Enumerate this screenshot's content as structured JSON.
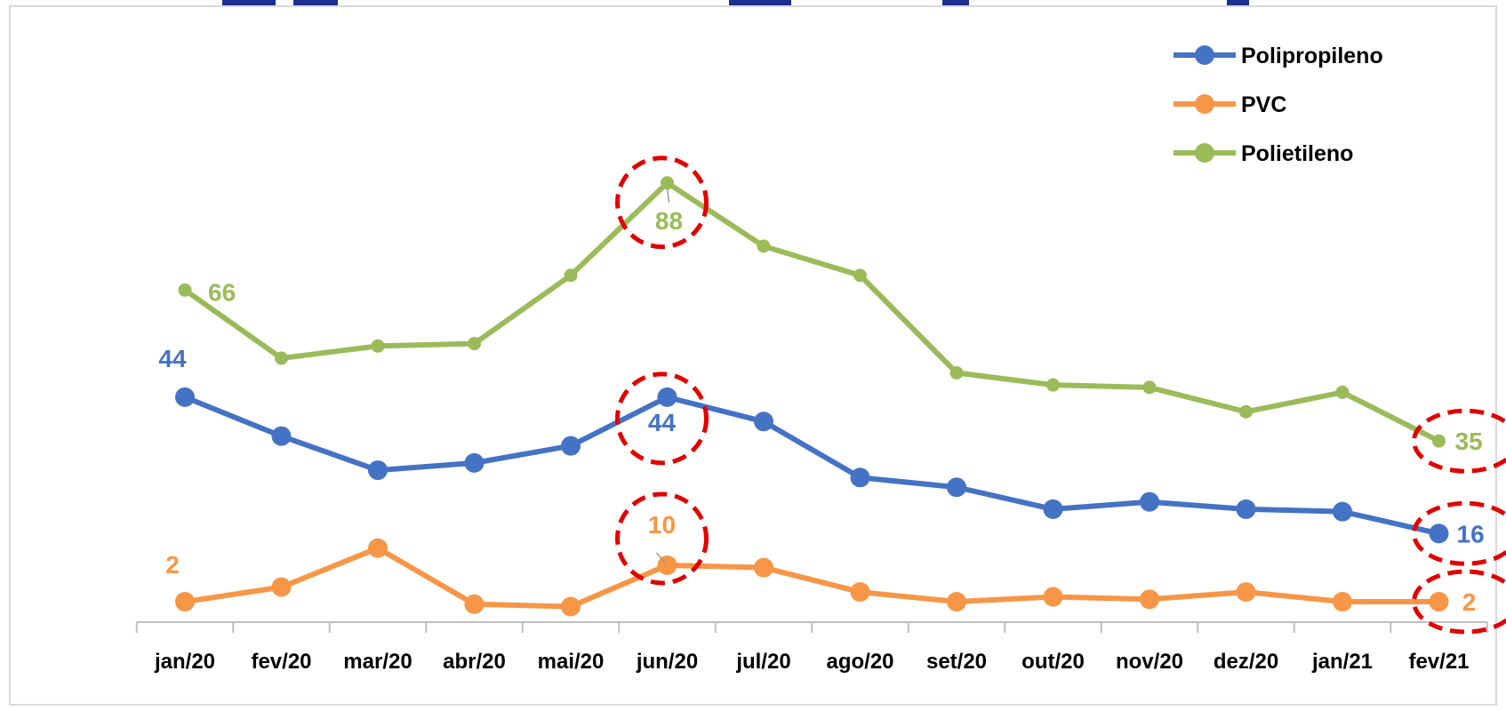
{
  "chart_data": {
    "type": "line",
    "title": "",
    "xlabel": "",
    "ylabel": "",
    "categories": [
      "jan/20",
      "fev/20",
      "mar/20",
      "abr/20",
      "mai/20",
      "jun/20",
      "jul/20",
      "ago/20",
      "set/20",
      "out/20",
      "nov/20",
      "dez/20",
      "jan/21",
      "fev/21"
    ],
    "ylim": [
      0,
      100
    ],
    "grid": false,
    "legend_position": "top-right",
    "series": [
      {
        "name": "Polipropileno",
        "color": "#4472c4",
        "values": [
          44,
          36,
          29,
          30.5,
          34,
          44,
          39,
          27.5,
          25.5,
          21,
          22.5,
          21,
          20.5,
          16
        ]
      },
      {
        "name": "PVC",
        "color": "#f79646",
        "values": [
          2,
          5,
          13,
          1.5,
          1,
          9.5,
          9,
          4,
          2,
          3,
          2.5,
          4,
          2,
          2
        ]
      },
      {
        "name": "Polietileno",
        "color": "#9bbb59",
        "values": [
          66,
          52,
          54.5,
          55,
          69,
          88,
          75,
          69,
          49,
          46.5,
          46,
          41,
          45,
          35
        ]
      }
    ],
    "data_labels": [
      {
        "series": "Polipropileno",
        "index": 0,
        "text": "44"
      },
      {
        "series": "Polipropileno",
        "index": 5,
        "text": "44"
      },
      {
        "series": "Polipropileno",
        "index": 13,
        "text": "16"
      },
      {
        "series": "PVC",
        "index": 0,
        "text": "2"
      },
      {
        "series": "PVC",
        "index": 5,
        "text": "10"
      },
      {
        "series": "PVC",
        "index": 13,
        "text": "2"
      },
      {
        "series": "Polietileno",
        "index": 0,
        "text": "66"
      },
      {
        "series": "Polietileno",
        "index": 5,
        "text": "88"
      },
      {
        "series": "Polietileno",
        "index": 13,
        "text": "35"
      }
    ],
    "highlighted_points": [
      {
        "series": "Polietileno",
        "index": 5
      },
      {
        "series": "Polipropileno",
        "index": 5
      },
      {
        "series": "PVC",
        "index": 5
      },
      {
        "series": "Polietileno",
        "index": 13
      },
      {
        "series": "Polipropileno",
        "index": 13
      },
      {
        "series": "PVC",
        "index": 13
      }
    ],
    "highlight_color": "#e00000"
  }
}
